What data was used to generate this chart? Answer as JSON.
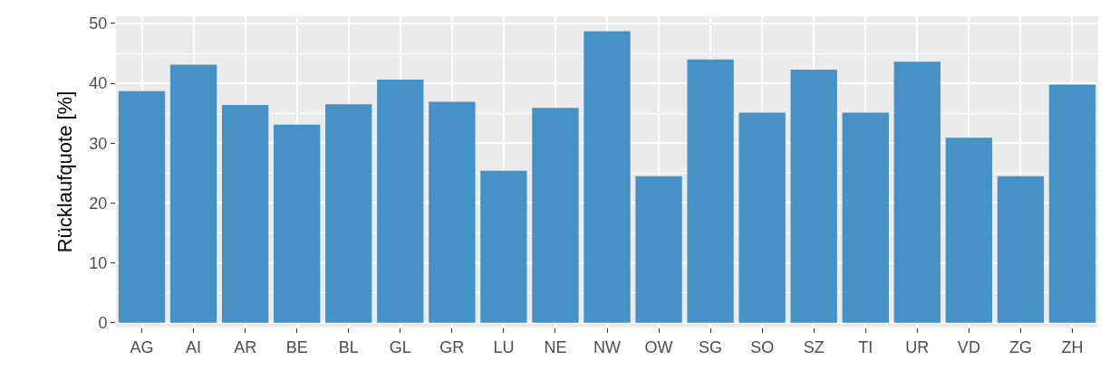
{
  "chart_data": {
    "type": "bar",
    "ylabel": "Rücklaufquote [%]",
    "categories": [
      "AG",
      "AI",
      "AR",
      "BE",
      "BL",
      "GL",
      "GR",
      "LU",
      "NE",
      "NW",
      "OW",
      "SG",
      "SO",
      "SZ",
      "TI",
      "UR",
      "VD",
      "ZG",
      "ZH"
    ],
    "values": [
      38.7,
      43.1,
      36.4,
      33.1,
      36.5,
      40.6,
      36.9,
      25.4,
      35.9,
      48.7,
      24.5,
      44.0,
      35.1,
      42.3,
      35.1,
      43.6,
      30.9,
      24.5,
      39.8
    ],
    "color": "#4692c6",
    "ylim": [
      -0.8,
      51.2
    ],
    "yticks": [
      0,
      10,
      20,
      30,
      40,
      50
    ],
    "grid": true,
    "legend": false
  }
}
